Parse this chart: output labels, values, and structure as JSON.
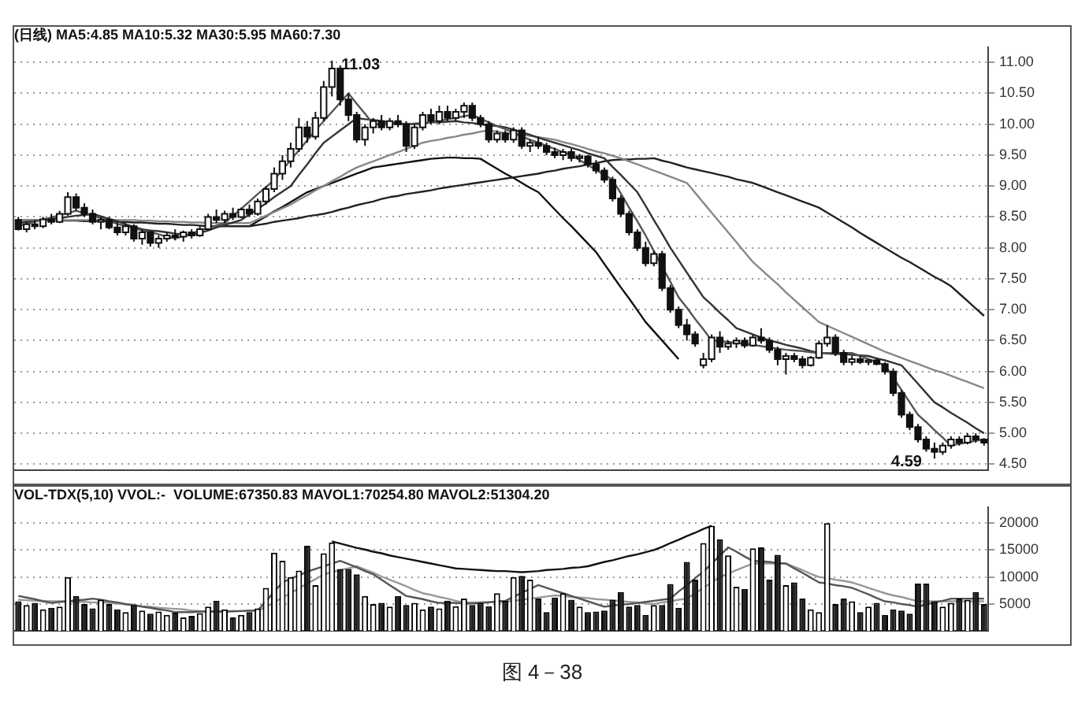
{
  "chart_data": [
    {
      "type": "candlestick",
      "title": "(日线) MA5:4.85 MA10:5.32 MA30:5.95 MA60:7.30",
      "tick_labels": "y",
      "grid": "y",
      "marker": "none",
      "ylim": [
        4.4,
        11.25
      ],
      "yticks": [
        {
          "value": 4.5,
          "label": "4.50"
        },
        {
          "value": 5,
          "label": "5.00"
        },
        {
          "value": 5.5,
          "label": "5.50"
        },
        {
          "value": 6,
          "label": "6.00"
        },
        {
          "value": 6.5,
          "label": "6.50"
        },
        {
          "value": 7,
          "label": "7.00"
        },
        {
          "value": 7.5,
          "label": "7.50"
        },
        {
          "value": 8,
          "label": "8.00"
        },
        {
          "value": 8.5,
          "label": "8.50"
        },
        {
          "value": 9,
          "label": "9.00"
        },
        {
          "value": 9.5,
          "label": "9.50"
        },
        {
          "value": 10,
          "label": "10.00"
        },
        {
          "value": 10.5,
          "label": "10.50"
        },
        {
          "value": 11,
          "label": "11.00"
        }
      ],
      "categories": [
        null,
        null,
        null,
        null,
        null,
        null,
        null,
        null,
        null,
        null,
        null,
        null,
        null,
        null,
        null,
        null,
        null,
        null,
        null,
        null,
        null,
        null,
        null,
        null,
        null,
        null,
        null,
        null,
        null,
        null,
        null,
        null,
        null,
        null,
        null,
        null,
        null,
        null,
        null,
        null,
        null,
        null,
        null,
        null,
        null,
        null,
        null,
        null,
        null,
        null,
        null,
        null,
        null,
        null,
        null,
        null,
        null,
        null,
        null,
        null,
        null,
        null,
        null,
        null,
        null,
        null,
        null,
        null,
        null,
        null,
        null,
        null,
        null,
        null,
        null,
        null,
        null,
        null,
        null,
        null,
        null,
        null,
        null,
        null,
        null,
        null,
        null,
        null,
        null,
        null,
        null,
        null,
        null,
        null,
        null,
        null,
        null,
        null,
        null,
        null,
        null,
        null,
        null,
        null,
        null,
        null,
        null,
        null,
        null,
        null,
        null,
        null,
        null,
        null,
        null,
        null,
        null,
        null
      ],
      "ohlc": [
        [
          8.45,
          8.5,
          8.28,
          8.3
        ],
        [
          8.3,
          8.42,
          8.25,
          8.38
        ],
        [
          8.38,
          8.45,
          8.3,
          8.35
        ],
        [
          8.35,
          8.5,
          8.32,
          8.46
        ],
        [
          8.46,
          8.55,
          8.38,
          8.42
        ],
        [
          8.42,
          8.6,
          8.4,
          8.55
        ],
        [
          8.55,
          8.9,
          8.52,
          8.82
        ],
        [
          8.82,
          8.88,
          8.6,
          8.65
        ],
        [
          8.65,
          8.72,
          8.5,
          8.55
        ],
        [
          8.55,
          8.62,
          8.38,
          8.42
        ],
        [
          8.42,
          8.5,
          8.3,
          8.45
        ],
        [
          8.45,
          8.5,
          8.3,
          8.33
        ],
        [
          8.33,
          8.4,
          8.2,
          8.25
        ],
        [
          8.25,
          8.4,
          8.2,
          8.35
        ],
        [
          8.35,
          8.38,
          8.1,
          8.15
        ],
        [
          8.15,
          8.3,
          8.05,
          8.25
        ],
        [
          8.25,
          8.28,
          8.02,
          8.08
        ],
        [
          8.08,
          8.2,
          8.0,
          8.15
        ],
        [
          8.15,
          8.25,
          8.1,
          8.2
        ],
        [
          8.2,
          8.3,
          8.12,
          8.18
        ],
        [
          8.18,
          8.28,
          8.1,
          8.25
        ],
        [
          8.25,
          8.3,
          8.15,
          8.2
        ],
        [
          8.2,
          8.35,
          8.18,
          8.3
        ],
        [
          8.3,
          8.55,
          8.28,
          8.5
        ],
        [
          8.5,
          8.62,
          8.4,
          8.45
        ],
        [
          8.45,
          8.6,
          8.4,
          8.55
        ],
        [
          8.55,
          8.65,
          8.45,
          8.5
        ],
        [
          8.5,
          8.65,
          8.48,
          8.62
        ],
        [
          8.62,
          8.7,
          8.5,
          8.55
        ],
        [
          8.55,
          8.8,
          8.52,
          8.75
        ],
        [
          8.75,
          9.0,
          8.7,
          8.95
        ],
        [
          8.95,
          9.3,
          8.9,
          9.2
        ],
        [
          9.2,
          9.5,
          9.1,
          9.4
        ],
        [
          9.4,
          9.7,
          9.3,
          9.6
        ],
        [
          9.6,
          10.1,
          9.55,
          9.95
        ],
        [
          9.95,
          10.05,
          9.7,
          9.8
        ],
        [
          9.8,
          10.2,
          9.75,
          10.1
        ],
        [
          10.1,
          10.7,
          10.05,
          10.6
        ],
        [
          10.6,
          11.03,
          10.45,
          10.9
        ],
        [
          10.9,
          10.95,
          10.3,
          10.4
        ],
        [
          10.4,
          10.5,
          10.05,
          10.15
        ],
        [
          10.15,
          10.2,
          9.7,
          9.75
        ],
        [
          9.75,
          10.0,
          9.65,
          9.95
        ],
        [
          9.95,
          10.1,
          9.85,
          10.05
        ],
        [
          10.05,
          10.15,
          9.9,
          9.95
        ],
        [
          9.95,
          10.1,
          9.9,
          10.05
        ],
        [
          10.05,
          10.15,
          9.95,
          10.0
        ],
        [
          10.0,
          10.05,
          9.55,
          9.65
        ],
        [
          9.65,
          10.0,
          9.6,
          9.95
        ],
        [
          9.95,
          10.2,
          9.9,
          10.15
        ],
        [
          10.15,
          10.25,
          10.0,
          10.05
        ],
        [
          10.05,
          10.3,
          10.0,
          10.2
        ],
        [
          10.2,
          10.3,
          10.05,
          10.1
        ],
        [
          10.1,
          10.25,
          10.05,
          10.2
        ],
        [
          10.2,
          10.35,
          10.1,
          10.3
        ],
        [
          10.3,
          10.35,
          10.05,
          10.1
        ],
        [
          10.1,
          10.15,
          9.95,
          10.0
        ],
        [
          10.0,
          10.05,
          9.7,
          9.75
        ],
        [
          9.75,
          9.9,
          9.7,
          9.85
        ],
        [
          9.85,
          9.9,
          9.7,
          9.75
        ],
        [
          9.75,
          9.95,
          9.7,
          9.9
        ],
        [
          9.9,
          9.95,
          9.6,
          9.65
        ],
        [
          9.65,
          9.75,
          9.55,
          9.7
        ],
        [
          9.7,
          9.8,
          9.6,
          9.65
        ],
        [
          9.65,
          9.7,
          9.5,
          9.55
        ],
        [
          9.55,
          9.62,
          9.45,
          9.5
        ],
        [
          9.5,
          9.6,
          9.42,
          9.55
        ],
        [
          9.55,
          9.6,
          9.4,
          9.45
        ],
        [
          9.45,
          9.52,
          9.38,
          9.48
        ],
        [
          9.48,
          9.5,
          9.3,
          9.35
        ],
        [
          9.35,
          9.42,
          9.2,
          9.25
        ],
        [
          9.25,
          9.3,
          9.05,
          9.1
        ],
        [
          9.1,
          9.15,
          8.75,
          8.8
        ],
        [
          8.8,
          8.85,
          8.5,
          8.55
        ],
        [
          8.55,
          8.6,
          8.2,
          8.25
        ],
        [
          8.25,
          8.3,
          7.95,
          8.0
        ],
        [
          8.0,
          8.1,
          7.7,
          7.75
        ],
        [
          7.75,
          7.95,
          7.7,
          7.9
        ],
        [
          7.9,
          7.95,
          7.3,
          7.35
        ],
        [
          7.35,
          7.4,
          6.95,
          7.0
        ],
        [
          7.0,
          7.05,
          6.7,
          6.75
        ],
        [
          6.75,
          6.85,
          6.5,
          6.6
        ],
        [
          6.6,
          6.65,
          6.4,
          6.45
        ],
        [
          6.1,
          6.3,
          6.05,
          6.2
        ],
        [
          6.2,
          6.6,
          6.15,
          6.55
        ],
        [
          6.55,
          6.65,
          6.3,
          6.4
        ],
        [
          6.4,
          6.5,
          6.35,
          6.45
        ],
        [
          6.45,
          6.55,
          6.38,
          6.5
        ],
        [
          6.5,
          6.55,
          6.38,
          6.42
        ],
        [
          6.42,
          6.6,
          6.4,
          6.55
        ],
        [
          6.55,
          6.7,
          6.45,
          6.5
        ],
        [
          6.5,
          6.55,
          6.3,
          6.35
        ],
        [
          6.35,
          6.4,
          6.1,
          6.2
        ],
        [
          6.2,
          6.3,
          5.95,
          6.25
        ],
        [
          6.25,
          6.3,
          6.15,
          6.2
        ],
        [
          6.2,
          6.25,
          6.05,
          6.1
        ],
        [
          6.1,
          6.25,
          6.08,
          6.22
        ],
        [
          6.22,
          6.5,
          6.2,
          6.45
        ],
        [
          6.45,
          6.75,
          6.4,
          6.55
        ],
        [
          6.55,
          6.6,
          6.25,
          6.3
        ],
        [
          6.3,
          6.35,
          6.1,
          6.15
        ],
        [
          6.15,
          6.25,
          6.1,
          6.2
        ],
        [
          6.2,
          6.25,
          6.12,
          6.15
        ],
        [
          6.15,
          6.2,
          6.1,
          6.18
        ],
        [
          6.18,
          6.22,
          6.1,
          6.12
        ],
        [
          6.12,
          6.15,
          5.95,
          6.0
        ],
        [
          6.0,
          6.05,
          5.6,
          5.65
        ],
        [
          5.65,
          5.7,
          5.25,
          5.3
        ],
        [
          5.3,
          5.35,
          5.05,
          5.1
        ],
        [
          5.1,
          5.15,
          4.85,
          4.9
        ],
        [
          4.9,
          4.95,
          4.7,
          4.75
        ],
        [
          4.75,
          4.85,
          4.59,
          4.7
        ],
        [
          4.7,
          4.85,
          4.65,
          4.8
        ],
        [
          4.8,
          4.95,
          4.75,
          4.9
        ],
        [
          4.9,
          4.95,
          4.8,
          4.85
        ],
        [
          4.85,
          5.0,
          4.82,
          4.95
        ],
        [
          4.95,
          5.0,
          4.85,
          4.9
        ],
        [
          4.9,
          4.92,
          4.8,
          4.85
        ]
      ],
      "series": [
        {
          "type": "line",
          "color": "#555555",
          "values": [
            8.35,
            8.39,
            8.42,
            8.46,
            8.49,
            8.53,
            8.56,
            8.6,
            8.56,
            8.52,
            8.48,
            8.43,
            8.39,
            8.35,
            8.32,
            8.28,
            8.25,
            8.22,
            8.18,
            8.15,
            8.19,
            8.23,
            8.28,
            8.32,
            8.36,
            8.4,
            8.52,
            8.63,
            8.75,
            8.87,
            8.98,
            9.1,
            9.26,
            9.42,
            9.58,
            9.74,
            9.9,
            10.05,
            10.2,
            10.35,
            10.5,
            10.33,
            10.17,
            10.0,
            10.0,
            10.0,
            10.0,
            10.0,
            10.0,
            10.0,
            10.03,
            10.05,
            10.08,
            10.1,
            10.13,
            10.15,
            10.09,
            10.03,
            9.97,
            9.92,
            9.86,
            9.8,
            9.75,
            9.7,
            9.65,
            9.6,
            9.55,
            9.5,
            9.42,
            9.34,
            9.26,
            9.18,
            9.1,
            8.88,
            8.65,
            8.43,
            8.2,
            7.95,
            7.7,
            7.45,
            7.2,
            7.03,
            6.85,
            6.68,
            6.5,
            6.49,
            6.48,
            6.46,
            6.45,
            6.43,
            6.41,
            6.39,
            6.37,
            6.35,
            6.34,
            6.33,
            6.31,
            6.3,
            6.3,
            6.3,
            6.3,
            6.3,
            6.25,
            6.2,
            6.15,
            6.1,
            5.9,
            5.7,
            5.5,
            5.3,
            5.18,
            5.05,
            4.93,
            4.8,
            4.83,
            4.85,
            4.88,
            4.9
          ]
        },
        {
          "type": "line",
          "color": "#333333",
          "values": [
            8.4,
            8.42,
            8.43,
            8.45,
            8.47,
            8.48,
            8.5,
            8.52,
            8.53,
            8.55,
            8.51,
            8.47,
            8.43,
            8.38,
            8.34,
            8.3,
            8.28,
            8.27,
            8.25,
            8.23,
            8.22,
            8.2,
            8.24,
            8.28,
            8.33,
            8.37,
            8.41,
            8.45,
            8.54,
            8.63,
            8.72,
            8.82,
            8.91,
            9.0,
            9.18,
            9.35,
            9.53,
            9.7,
            9.8,
            9.9,
            10.0,
            10.1,
            10.08,
            10.07,
            10.05,
            10.03,
            10.02,
            10.0,
            10.01,
            10.02,
            10.03,
            10.03,
            10.04,
            10.05,
            10.03,
            10.02,
            10.0,
            9.98,
            9.97,
            9.95,
            9.91,
            9.87,
            9.83,
            9.78,
            9.74,
            9.7,
            9.66,
            9.62,
            9.58,
            9.53,
            9.49,
            9.45,
            9.31,
            9.18,
            9.04,
            8.9,
            8.68,
            8.45,
            8.23,
            8.0,
            7.8,
            7.6,
            7.4,
            7.2,
            7.08,
            6.95,
            6.83,
            6.7,
            6.65,
            6.6,
            6.55,
            6.5,
            6.47,
            6.43,
            6.4,
            6.37,
            6.33,
            6.3,
            6.29,
            6.28,
            6.28,
            6.27,
            6.26,
            6.25,
            6.21,
            6.18,
            6.14,
            6.1,
            5.95,
            5.8,
            5.65,
            5.5,
            5.42,
            5.33,
            5.25,
            5.17,
            5.08,
            5.0
          ]
        },
        {
          "type": "line",
          "color": "#888888",
          "values": [
            8.45,
            8.45,
            8.45,
            8.45,
            8.45,
            8.45,
            8.45,
            8.45,
            8.45,
            8.45,
            8.45,
            8.45,
            8.45,
            8.45,
            8.45,
            8.44,
            8.44,
            8.43,
            8.43,
            8.42,
            8.42,
            8.41,
            8.41,
            8.4,
            8.4,
            8.4,
            8.4,
            8.4,
            8.4,
            8.46,
            8.52,
            8.58,
            8.64,
            8.7,
            8.78,
            8.85,
            8.93,
            9.0,
            9.08,
            9.15,
            9.23,
            9.3,
            9.35,
            9.4,
            9.45,
            9.5,
            9.55,
            9.6,
            9.65,
            9.7,
            9.73,
            9.75,
            9.78,
            9.8,
            9.83,
            9.85,
            9.88,
            9.9,
            9.88,
            9.86,
            9.84,
            9.83,
            9.81,
            9.79,
            9.77,
            9.75,
            9.71,
            9.68,
            9.64,
            9.6,
            9.56,
            9.53,
            9.49,
            9.45,
            9.4,
            9.35,
            9.3,
            9.25,
            9.2,
            9.15,
            9.1,
            9.05,
            8.89,
            8.73,
            8.57,
            8.41,
            8.25,
            8.09,
            7.93,
            7.77,
            7.65,
            7.53,
            7.41,
            7.28,
            7.16,
            7.04,
            6.92,
            6.8,
            6.74,
            6.68,
            6.62,
            6.56,
            6.5,
            6.44,
            6.38,
            6.32,
            6.27,
            6.22,
            6.17,
            6.12,
            6.07,
            6.02,
            5.98,
            5.93,
            5.88,
            5.83,
            5.78,
            5.73
          ]
        },
        {
          "type": "line",
          "color": "#222222",
          "values": [
            8.45,
            8.45,
            8.45,
            8.45,
            8.44,
            8.44,
            8.44,
            8.44,
            8.43,
            8.43,
            8.43,
            8.43,
            8.42,
            8.42,
            8.41,
            8.41,
            8.4,
            8.39,
            8.39,
            8.38,
            8.37,
            8.37,
            8.36,
            8.35,
            8.35,
            8.35,
            8.35,
            8.35,
            8.35,
            8.37,
            8.39,
            8.42,
            8.44,
            8.46,
            8.48,
            8.51,
            8.53,
            8.55,
            8.58,
            8.62,
            8.65,
            8.69,
            8.72,
            8.75,
            8.79,
            8.82,
            8.84,
            8.87,
            8.89,
            8.91,
            8.93,
            8.96,
            8.98,
            9.0,
            9.02,
            9.04,
            9.06,
            9.08,
            9.1,
            9.12,
            9.14,
            9.16,
            9.18,
            9.2,
            9.23,
            9.25,
            9.28,
            9.3,
            9.32,
            9.35,
            9.37,
            9.4,
            9.42,
            9.43,
            9.43,
            9.44,
            9.44,
            9.45,
            9.41,
            9.38,
            9.34,
            9.3,
            9.27,
            9.24,
            9.21,
            9.18,
            9.15,
            9.11,
            9.08,
            9.05,
            9.0,
            8.95,
            8.9,
            8.85,
            8.8,
            8.75,
            8.7,
            8.65,
            8.57,
            8.49,
            8.41,
            8.33,
            8.24,
            8.16,
            8.08,
            8.0,
            7.92,
            7.84,
            7.77,
            7.69,
            7.61,
            7.53,
            7.46,
            7.38,
            7.26,
            7.14,
            7.02,
            6.9
          ]
        },
        {
          "type": "line",
          "color": "#111111",
          "values": [
            null,
            null,
            null,
            null,
            null,
            null,
            null,
            null,
            null,
            null,
            null,
            null,
            null,
            null,
            null,
            null,
            null,
            null,
            null,
            null,
            null,
            null,
            null,
            null,
            null,
            null,
            null,
            null,
            8.35,
            8.43,
            8.51,
            8.59,
            8.66,
            8.74,
            8.82,
            8.9,
            8.95,
            9.0,
            9.05,
            9.1,
            9.15,
            9.2,
            9.25,
            9.3,
            9.32,
            9.34,
            9.36,
            9.38,
            9.4,
            9.42,
            9.44,
            9.45,
            9.46,
            9.46,
            9.45,
            9.45,
            9.44,
            9.36,
            9.28,
            9.2,
            9.13,
            9.05,
            8.97,
            8.9,
            8.76,
            8.62,
            8.48,
            8.35,
            8.21,
            8.07,
            7.93,
            7.74,
            7.55,
            7.36,
            7.18,
            6.99,
            6.8,
            6.65,
            6.5,
            6.35,
            6.2,
            null,
            null,
            null,
            null,
            null,
            null,
            null,
            null,
            null,
            null,
            null,
            null,
            null,
            null,
            null,
            null,
            null,
            null,
            null,
            null,
            null,
            null,
            null,
            null,
            null,
            null,
            null,
            null,
            null,
            null,
            null,
            null,
            null,
            null,
            null,
            null,
            null
          ]
        }
      ],
      "annotations": [
        "11.03",
        "4.59"
      ]
    },
    {
      "type": "bar",
      "title": "VOL-TDX(5,10) VVOL:-  VOLUME:67350.83 MAVOL1:70254.80 MAVOL2:51304.20",
      "tick_labels": "y",
      "grid": "y",
      "marker": "none",
      "ylim": [
        0,
        23000
      ],
      "yticks": [
        5000,
        10000,
        15000,
        20000
      ],
      "categories": [
        null,
        null,
        null,
        null,
        null,
        null,
        null,
        null,
        null,
        null,
        null,
        null,
        null,
        null,
        null,
        null,
        null,
        null,
        null,
        null,
        null,
        null,
        null,
        null,
        null,
        null,
        null,
        null,
        null,
        null,
        null,
        null,
        null,
        null,
        null,
        null,
        null,
        null,
        null,
        null,
        null,
        null,
        null,
        null,
        null,
        null,
        null,
        null,
        null,
        null,
        null,
        null,
        null,
        null,
        null,
        null,
        null,
        null,
        null,
        null,
        null,
        null,
        null,
        null,
        null,
        null,
        null,
        null,
        null,
        null,
        null,
        null,
        null,
        null,
        null,
        null,
        null,
        null,
        null,
        null,
        null,
        null,
        null,
        null,
        null,
        null,
        null,
        null,
        null,
        null,
        null,
        null,
        null,
        null,
        null,
        null,
        null,
        null,
        null,
        null,
        null,
        null,
        null,
        null,
        null,
        null,
        null,
        null,
        null,
        null,
        null,
        null,
        null,
        null,
        null,
        null,
        null,
        null
      ],
      "series": [
        {
          "type": "bar",
          "values": [
            5500,
            4800,
            5200,
            4000,
            4300,
            4500,
            10000,
            6500,
            5000,
            4200,
            5800,
            5000,
            4000,
            3500,
            4800,
            3800,
            3200,
            3600,
            3000,
            3400,
            2500,
            2800,
            3300,
            4500,
            5600,
            4000,
            2500,
            3000,
            3500,
            4200,
            8000,
            14500,
            13000,
            10000,
            11200,
            15800,
            8500,
            14400,
            16400,
            11500,
            11500,
            10500,
            6500,
            5000,
            5200,
            4500,
            6500,
            4800,
            5200,
            4000,
            4500,
            4200,
            5600,
            4600,
            6000,
            4800,
            5200,
            4600,
            7000,
            5600,
            10000,
            10200,
            9500,
            6000,
            3500,
            6200,
            7000,
            5800,
            4500,
            3500,
            3600,
            3800,
            5800,
            7200,
            4500,
            4800,
            3000,
            4800,
            4800,
            8700,
            4300,
            12800,
            9500,
            16300,
            19500,
            17000,
            14000,
            8200,
            7800,
            15300,
            15500,
            9500,
            14100,
            8500,
            9000,
            6000,
            4000,
            3500,
            20000,
            5000,
            6000,
            5500,
            3500,
            4500,
            5200,
            3000,
            4000,
            3800,
            3200,
            8800,
            8800,
            5500,
            4500,
            5200,
            6000,
            5800,
            7200,
            5000
          ],
          "colors": [
            "#222222",
            "#ffffff",
            "#222222",
            "#ffffff",
            "#222222",
            "#ffffff",
            "#ffffff",
            "#222222",
            "#222222",
            "#222222",
            "#ffffff",
            "#222222",
            "#222222",
            "#ffffff",
            "#222222",
            "#ffffff",
            "#222222",
            "#ffffff",
            "#ffffff",
            "#222222",
            "#ffffff",
            "#222222",
            "#ffffff",
            "#ffffff",
            "#222222",
            "#ffffff",
            "#222222",
            "#ffffff",
            "#222222",
            "#ffffff",
            "#ffffff",
            "#ffffff",
            "#ffffff",
            "#ffffff",
            "#ffffff",
            "#222222",
            "#ffffff",
            "#ffffff",
            "#ffffff",
            "#222222",
            "#222222",
            "#222222",
            "#ffffff",
            "#ffffff",
            "#222222",
            "#ffffff",
            "#222222",
            "#222222",
            "#ffffff",
            "#ffffff",
            "#222222",
            "#ffffff",
            "#222222",
            "#ffffff",
            "#ffffff",
            "#222222",
            "#222222",
            "#222222",
            "#ffffff",
            "#222222",
            "#ffffff",
            "#222222",
            "#ffffff",
            "#222222",
            "#222222",
            "#222222",
            "#ffffff",
            "#222222",
            "#ffffff",
            "#222222",
            "#222222",
            "#222222",
            "#222222",
            "#222222",
            "#222222",
            "#222222",
            "#222222",
            "#ffffff",
            "#222222",
            "#222222",
            "#222222",
            "#222222",
            "#222222",
            "#ffffff",
            "#ffffff",
            "#222222",
            "#ffffff",
            "#ffffff",
            "#222222",
            "#ffffff",
            "#222222",
            "#222222",
            "#222222",
            "#ffffff",
            "#222222",
            "#222222",
            "#ffffff",
            "#ffffff",
            "#ffffff",
            "#222222",
            "#222222",
            "#ffffff",
            "#222222",
            "#ffffff",
            "#222222",
            "#222222",
            "#222222",
            "#222222",
            "#222222",
            "#222222",
            "#222222",
            "#222222",
            "#ffffff",
            "#ffffff",
            "#222222",
            "#ffffff",
            "#222222",
            "#222222"
          ]
        },
        {
          "type": "line",
          "color": "#555555",
          "values": [
            6500,
            6200,
            5900,
            5500,
            5200,
            5400,
            5500,
            5700,
            5800,
            6000,
            5800,
            5500,
            5300,
            5000,
            4800,
            4500,
            4300,
            4000,
            3800,
            3500,
            3500,
            3500,
            3600,
            3600,
            3600,
            3600,
            3700,
            3700,
            3800,
            3800,
            5500,
            7300,
            9000,
            9700,
            10300,
            11000,
            11500,
            12000,
            12500,
            13000,
            12400,
            11800,
            11100,
            10500,
            9500,
            8500,
            7500,
            6500,
            6200,
            5900,
            5500,
            5200,
            5200,
            5200,
            5100,
            5100,
            5200,
            5300,
            5500,
            5600,
            6300,
            7100,
            7800,
            8500,
            8000,
            7500,
            7000,
            6500,
            6000,
            5500,
            5000,
            4500,
            4700,
            4900,
            5000,
            5200,
            5400,
            5600,
            5800,
            6000,
            7300,
            8500,
            9800,
            11000,
            12500,
            14000,
            15500,
            14700,
            13800,
            13000,
            12900,
            12800,
            12600,
            12500,
            11600,
            10800,
            9900,
            9000,
            8800,
            8500,
            8300,
            8000,
            7400,
            6800,
            6100,
            5500,
            5300,
            5000,
            4800,
            4500,
            4900,
            5300,
            5600,
            6000,
            6000,
            6000,
            6000,
            6000
          ]
        },
        {
          "type": "line",
          "color": "#999999",
          "values": [
            5800,
            5700,
            5600,
            5600,
            5500,
            5500,
            5500,
            5400,
            5400,
            5300,
            5300,
            5200,
            5100,
            4900,
            4800,
            4600,
            4500,
            4300,
            4200,
            4100,
            4000,
            3800,
            3700,
            3600,
            3600,
            3600,
            3600,
            3700,
            3700,
            3700,
            4500,
            5300,
            6200,
            7000,
            7900,
            8800,
            9600,
            10500,
            10900,
            11300,
            11600,
            12000,
            11400,
            10800,
            10100,
            9500,
            8900,
            8300,
            7600,
            7000,
            6700,
            6300,
            6000,
            5600,
            5300,
            5300,
            5300,
            5400,
            5400,
            5400,
            5600,
            5800,
            6000,
            6200,
            6400,
            6600,
            6500,
            6300,
            6200,
            6100,
            5900,
            5800,
            5700,
            5500,
            5400,
            5300,
            5100,
            5000,
            5300,
            5500,
            5800,
            6000,
            7000,
            8000,
            9000,
            10000,
            10600,
            11300,
            11900,
            12500,
            12500,
            12500,
            12500,
            12500,
            11900,
            11300,
            10600,
            10000,
            9800,
            9500,
            9300,
            9000,
            8500,
            8000,
            7500,
            7000,
            6600,
            6300,
            5900,
            5500,
            5500,
            5500,
            5500,
            5500,
            5500,
            5500,
            5500,
            5500
          ]
        },
        {
          "type": "line",
          "color": "#111111",
          "values": [
            null,
            null,
            null,
            null,
            null,
            null,
            null,
            null,
            null,
            null,
            null,
            null,
            null,
            null,
            null,
            null,
            null,
            null,
            null,
            null,
            null,
            null,
            null,
            null,
            null,
            null,
            null,
            null,
            null,
            null,
            null,
            null,
            null,
            null,
            null,
            null,
            null,
            null,
            16600,
            16200,
            15800,
            15400,
            15100,
            14700,
            14400,
            14000,
            13700,
            13400,
            13100,
            12800,
            12500,
            12200,
            11900,
            11600,
            11500,
            11400,
            11300,
            11200,
            11100,
            11100,
            11000,
            10900,
            11000,
            11100,
            11300,
            11400,
            11500,
            11700,
            11800,
            12000,
            12400,
            12800,
            13100,
            13500,
            13900,
            14200,
            14600,
            15000,
            15600,
            16300,
            16900,
            17600,
            18200,
            18900,
            19500,
            null,
            null,
            null,
            null,
            null,
            null,
            null,
            null,
            null,
            null,
            null,
            null,
            null,
            null,
            null,
            null,
            null,
            null,
            null,
            null,
            null,
            null,
            null,
            null,
            null,
            null,
            null,
            null,
            null,
            null,
            null,
            null,
            null
          ]
        }
      ],
      "annotations": [
        "图 4－38"
      ]
    }
  ]
}
